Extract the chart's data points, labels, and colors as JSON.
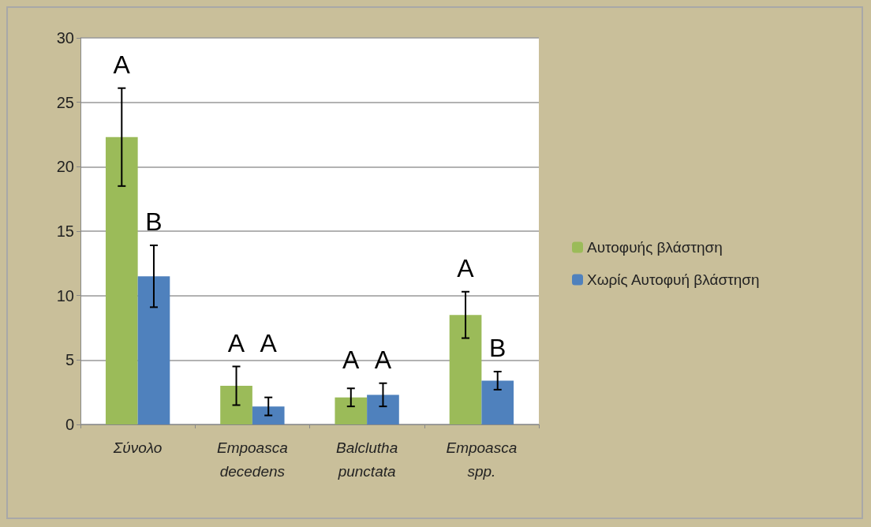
{
  "chart_data": {
    "type": "bar",
    "categories": [
      "Σύνολο",
      "Empoasca decedens",
      "Balclutha punctata",
      "Empoasca spp."
    ],
    "series": [
      {
        "name": "Αυτοφυής βλάστηση",
        "color": "#9bbb59",
        "values": [
          22.3,
          3.0,
          2.1,
          8.5
        ],
        "errors": [
          3.8,
          1.5,
          0.7,
          1.8
        ]
      },
      {
        "name": "Χωρίς Αυτοφυή βλάστηση",
        "color": "#4f81bd",
        "values": [
          11.5,
          1.4,
          2.3,
          3.4
        ],
        "errors": [
          2.4,
          0.7,
          0.9,
          0.7
        ]
      }
    ],
    "ylim": [
      0,
      30
    ],
    "yticks": [
      0,
      5,
      10,
      15,
      20,
      25,
      30
    ],
    "grid": "y",
    "legend": "right",
    "annotations": [
      "A",
      "B",
      "A",
      "A",
      "A",
      "A",
      "A",
      "B"
    ]
  }
}
